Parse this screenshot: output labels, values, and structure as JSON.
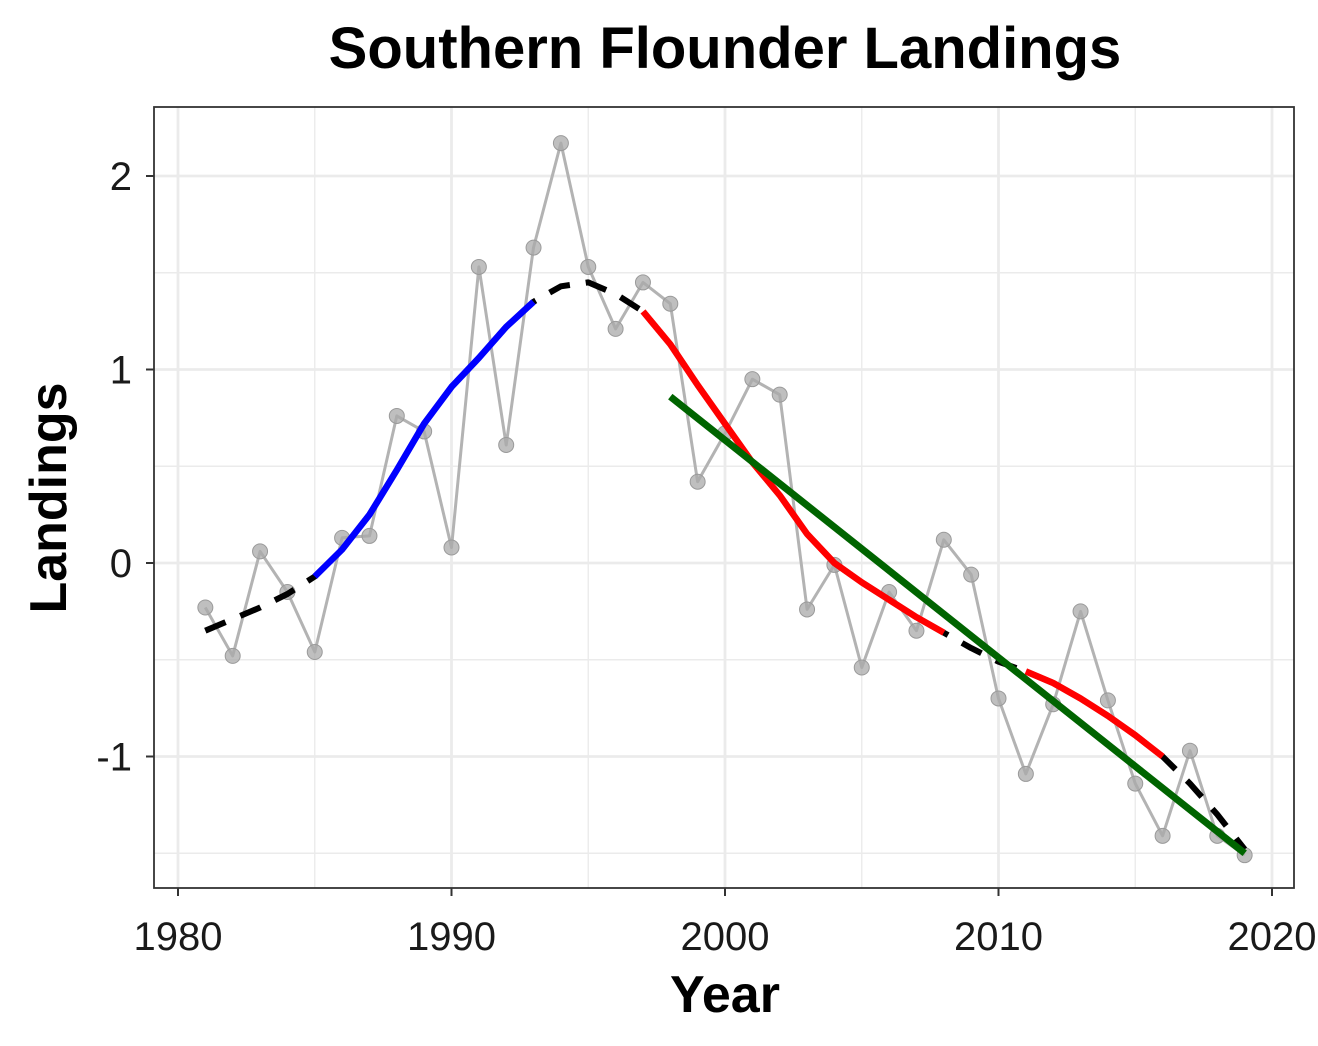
{
  "chart_data": {
    "type": "line",
    "title": "Southern Flounder Landings",
    "xlabel": "Year",
    "ylabel": "Landings",
    "xlim": [
      1980,
      2020
    ],
    "ylim": [
      -1.5,
      2.3
    ],
    "x_ticks": [
      1980,
      1990,
      2000,
      2010,
      2020
    ],
    "x_tick_labels": [
      "1980",
      "1990",
      "2000",
      "2010",
      "2020"
    ],
    "y_ticks": [
      -1,
      0,
      1,
      2
    ],
    "y_tick_labels": [
      "-1",
      "0",
      "1",
      "2"
    ],
    "grid": true,
    "legend": "none",
    "colors": {
      "observed": "#b3b3b3",
      "trend": "#000000",
      "increasing": "#0000ff",
      "decreasing": "#ff0000",
      "linear": "#006400"
    },
    "series": [
      {
        "role": "observed",
        "style": "line+points",
        "x": [
          1981,
          1982,
          1983,
          1984,
          1985,
          1986,
          1987,
          1988,
          1989,
          1990,
          1991,
          1992,
          1993,
          1994,
          1995,
          1996,
          1997,
          1998,
          1999,
          2000,
          2001,
          2002,
          2003,
          2004,
          2005,
          2006,
          2007,
          2008,
          2009,
          2010,
          2011,
          2012,
          2013,
          2014,
          2015,
          2016,
          2017,
          2018,
          2019
        ],
        "values": [
          -0.23,
          -0.48,
          0.06,
          -0.15,
          -0.46,
          0.13,
          0.14,
          0.76,
          0.68,
          0.08,
          1.53,
          0.61,
          1.63,
          2.17,
          1.53,
          1.21,
          1.45,
          1.34,
          0.42,
          0.67,
          0.95,
          0.87,
          -0.24,
          -0.01,
          -0.54,
          -0.15,
          -0.35,
          0.12,
          -0.06,
          -0.7,
          -1.09,
          -0.73,
          -0.25,
          -0.71,
          -1.14,
          -1.41,
          -0.97,
          -1.41,
          -1.51
        ]
      },
      {
        "role": "trend",
        "style": "dashed",
        "x": [
          1981,
          1982,
          1983,
          1984,
          1985,
          1986,
          1987,
          1988,
          1989,
          1990,
          1991,
          1992,
          1993,
          1994,
          1995,
          1996,
          1997,
          1998,
          1999,
          2000,
          2001,
          2002,
          2003,
          2004,
          2005,
          2006,
          2007,
          2008,
          2009,
          2010,
          2011,
          2012,
          2013,
          2014,
          2015,
          2016,
          2017,
          2018,
          2019
        ],
        "values": [
          -0.35,
          -0.29,
          -0.23,
          -0.16,
          -0.07,
          0.07,
          0.25,
          0.48,
          0.72,
          0.91,
          1.06,
          1.22,
          1.35,
          1.43,
          1.45,
          1.39,
          1.3,
          1.13,
          0.92,
          0.72,
          0.52,
          0.35,
          0.15,
          0.0,
          -0.1,
          -0.19,
          -0.28,
          -0.36,
          -0.44,
          -0.51,
          -0.56,
          -0.62,
          -0.7,
          -0.79,
          -0.89,
          -1.0,
          -1.14,
          -1.3,
          -1.48
        ]
      },
      {
        "role": "increasing",
        "style": "solid",
        "x": [
          1985,
          1986,
          1987,
          1988,
          1989,
          1990,
          1991,
          1992,
          1993
        ],
        "values": [
          -0.07,
          0.07,
          0.25,
          0.48,
          0.72,
          0.91,
          1.06,
          1.22,
          1.35
        ]
      },
      {
        "role": "decreasing",
        "style": "solid",
        "x": [
          1997,
          1998,
          1999,
          2000,
          2001,
          2002,
          2003,
          2004,
          2005,
          2006,
          2007,
          2008
        ],
        "values": [
          1.3,
          1.13,
          0.92,
          0.72,
          0.52,
          0.35,
          0.15,
          0.0,
          -0.1,
          -0.19,
          -0.28,
          -0.36
        ]
      },
      {
        "role": "decreasing",
        "style": "solid",
        "x": [
          2011,
          2012,
          2013,
          2014,
          2015,
          2016
        ],
        "values": [
          -0.56,
          -0.62,
          -0.7,
          -0.79,
          -0.89,
          -1.0
        ]
      },
      {
        "role": "linear",
        "style": "solid",
        "x": [
          1998,
          2019
        ],
        "values": [
          0.86,
          -1.5
        ]
      }
    ]
  }
}
